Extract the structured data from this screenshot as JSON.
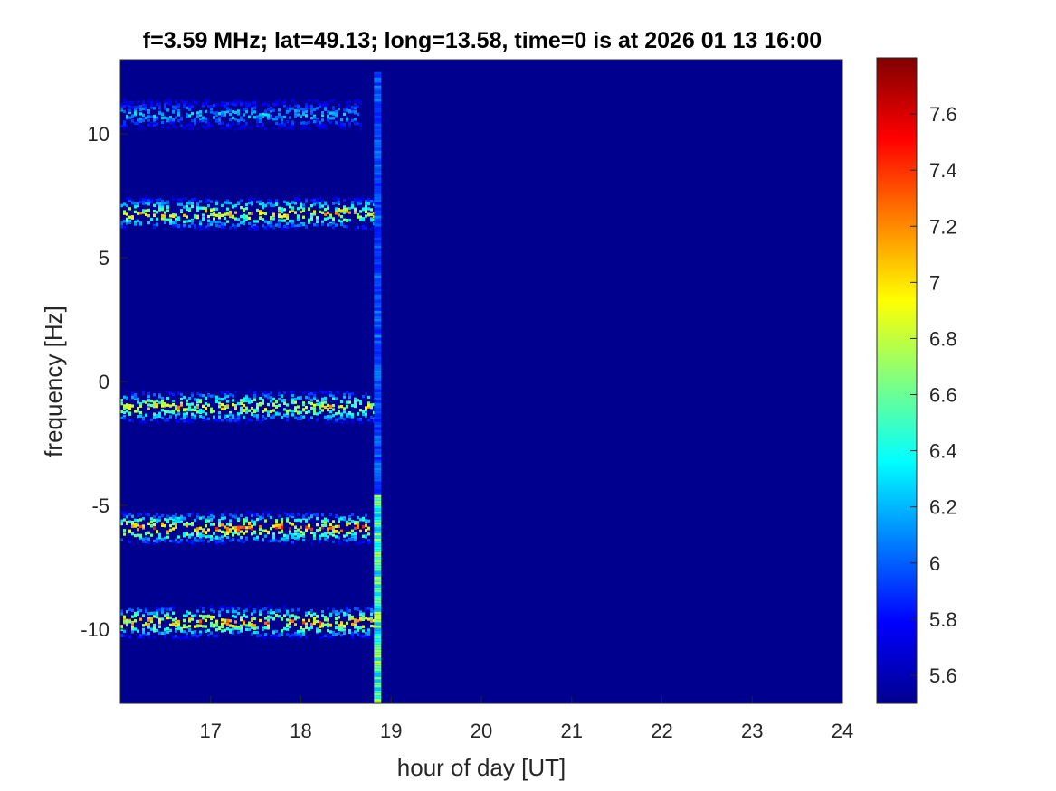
{
  "chart_data": {
    "type": "heatmap",
    "title": "f=3.59 MHz;  lat=49.13; long=13.58, time=0 is at 2026 01 13 16:00",
    "xlabel": "hour of day [UT]",
    "ylabel": "frequency [Hz]",
    "xlim": [
      16,
      24
    ],
    "ylim": [
      -13,
      13
    ],
    "x_ticks": [
      "17",
      "18",
      "19",
      "20",
      "21",
      "22",
      "23",
      "24"
    ],
    "x_tick_values": [
      17,
      18,
      19,
      20,
      21,
      22,
      23,
      24
    ],
    "y_ticks": [
      "10",
      "5",
      "0",
      "-5",
      "-10"
    ],
    "y_tick_values": [
      10,
      5,
      0,
      -5,
      -10
    ],
    "colorbar": {
      "colormap": "jet",
      "range": [
        5.5,
        7.8
      ],
      "ticks": [
        "7.6",
        "7.4",
        "7.2",
        "7",
        "6.8",
        "6.6",
        "6.4",
        "6.2",
        "6",
        "5.8",
        "5.6"
      ],
      "tick_values": [
        7.6,
        7.4,
        7.2,
        7.0,
        6.8,
        6.6,
        6.4,
        6.2,
        6.0,
        5.8,
        5.6
      ]
    },
    "background_value": 5.55,
    "bands": [
      {
        "center_hz": 10.8,
        "start_hour": 16.0,
        "end_hour": 18.65,
        "peak_value": 6.4
      },
      {
        "center_hz": 6.8,
        "start_hour": 16.0,
        "end_hour": 18.85,
        "peak_value": 7.35
      },
      {
        "center_hz": -1.0,
        "start_hour": 16.0,
        "end_hour": 18.8,
        "peak_value": 7.3
      },
      {
        "center_hz": -5.9,
        "start_hour": 16.0,
        "end_hour": 18.75,
        "peak_value": 7.6
      },
      {
        "center_hz": -9.7,
        "start_hour": 16.0,
        "end_hour": 18.8,
        "peak_value": 7.5
      }
    ],
    "vertical_feature": {
      "hour": 18.85,
      "from_hz": -13,
      "to_hz": 12.5,
      "peak_value": 6.8
    },
    "grid": false,
    "colors": {
      "background": "#00008f",
      "axis": "#262626"
    }
  }
}
